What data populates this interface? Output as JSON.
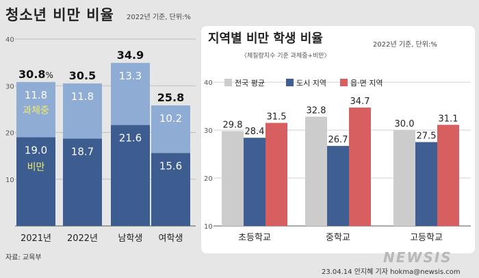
{
  "left": {
    "title": "청소년 비만 비율",
    "note": "2022년 기준, 단위:%"
  },
  "right": {
    "title": "지역별 비만 학생 비율",
    "note": "2022년 기준, 단위:%",
    "subtitle": "〈체질량지수 기준 과체중+비만〉"
  },
  "source": "자료: 교육부",
  "credit": "23.04.14 안지혜 기자 hokma@newsis.com",
  "logo": "NEWSIS",
  "colors": {
    "obese": "#3d5d91",
    "overweight": "#8eacd4",
    "national": "#cccccc",
    "city": "#3f5f93",
    "rural": "#d85f5f",
    "highlight": "#f1ec6a"
  },
  "chart_data": [
    {
      "type": "bar",
      "stacked": true,
      "title": "청소년 비만 비율",
      "categories": [
        "2021년",
        "2022년",
        "남학생",
        "여학생"
      ],
      "series": [
        {
          "name": "비만",
          "values": [
            19.0,
            18.7,
            21.6,
            15.6
          ]
        },
        {
          "name": "과체중",
          "values": [
            11.8,
            11.8,
            13.3,
            10.2
          ]
        }
      ],
      "totals": [
        "30.8",
        "30.5",
        "34.9",
        "25.8"
      ],
      "first_total_unit": "%",
      "segment_labels": {
        "비만": [
          "19.0",
          "18.7",
          "21.6",
          "15.6"
        ],
        "과체중": [
          "11.8",
          "11.8",
          "13.3",
          "10.2"
        ]
      },
      "ylim": [
        0,
        40
      ],
      "yticks": [
        "10",
        "20",
        "30",
        "40"
      ]
    },
    {
      "type": "bar",
      "title": "지역별 비만 학생 비율",
      "categories": [
        "초등학교",
        "중학교",
        "고등학교"
      ],
      "series": [
        {
          "name": "전국 평균",
          "values": [
            29.8,
            32.8,
            30.0
          ]
        },
        {
          "name": "도시 지역",
          "values": [
            28.4,
            26.7,
            27.5
          ]
        },
        {
          "name": "읍·면 지역",
          "values": [
            31.5,
            34.7,
            31.1
          ]
        }
      ],
      "value_labels": [
        [
          "29.8",
          "32.8",
          "30.0"
        ],
        [
          "28.4",
          "26.7",
          "27.5"
        ],
        [
          "31.5",
          "34.7",
          "31.1"
        ]
      ],
      "ylim": [
        10,
        40
      ],
      "yticks": [
        "10",
        "20",
        "30",
        "40"
      ],
      "legend": "top"
    }
  ]
}
